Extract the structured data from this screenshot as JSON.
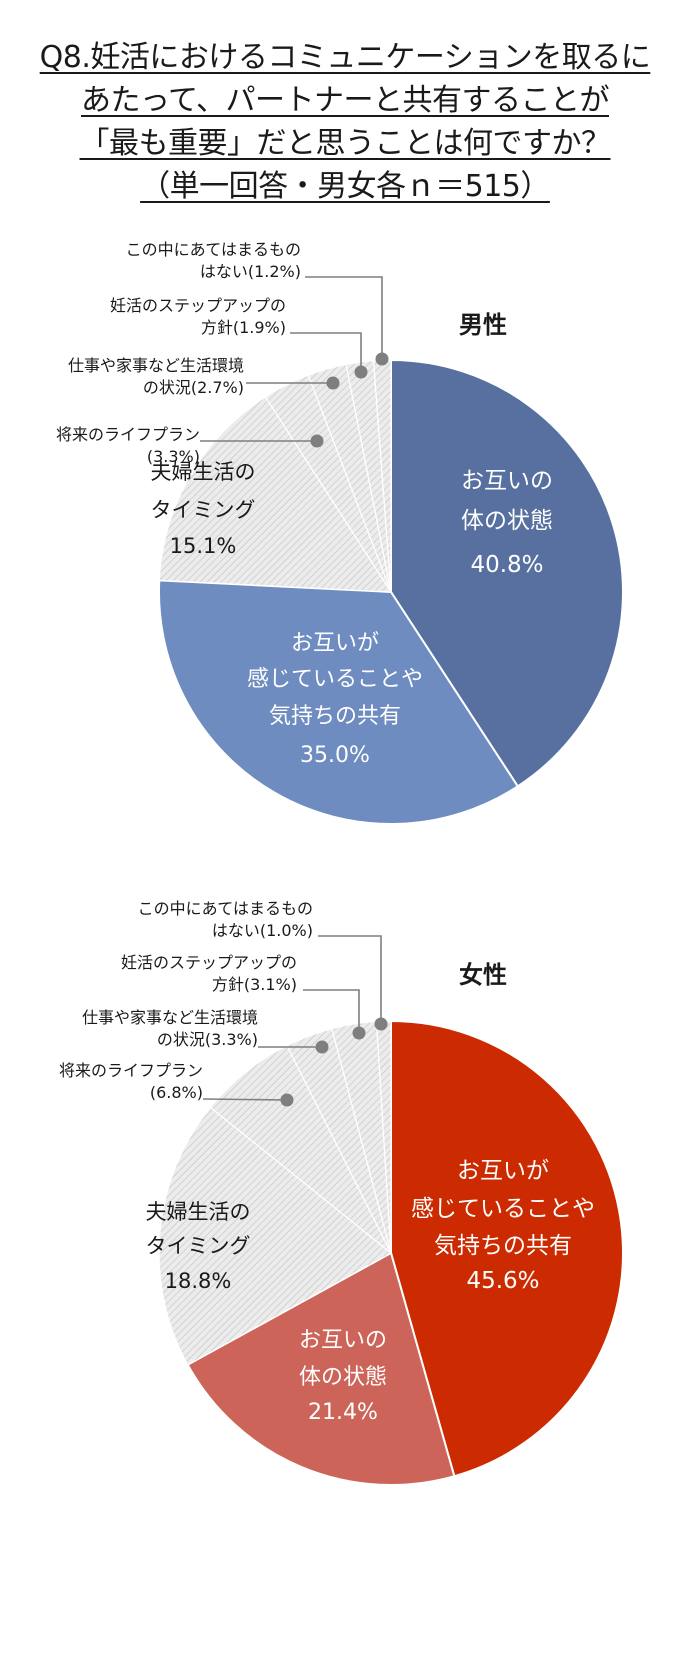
{
  "title_lines": [
    "Q8.妊活におけるコミュニケーションを取るに",
    "あたって、パートナーと共有することが",
    "「最も重要」だと思うことは何ですか？",
    "（単一回答・男女各ｎ＝515）"
  ],
  "chart_data": [
    {
      "type": "pie",
      "title": "男性",
      "slices": [
        {
          "label": [
            "お互いの",
            "体の状態"
          ],
          "value": 40.8,
          "value_text": "40.8%",
          "color": "#57709f",
          "text_color": "#ffffff"
        },
        {
          "label": [
            "お互いが",
            "感じていることや",
            "気持ちの共有"
          ],
          "value": 35.0,
          "value_text": "35.0%",
          "color": "#6e8cc0",
          "text_color": "#ffffff"
        },
        {
          "label": [
            "夫婦生活の",
            "タイミング"
          ],
          "value": 15.1,
          "value_text": "15.1%",
          "color": "#e6e6e6",
          "text_color": "#1a1a1a"
        },
        {
          "label": [
            "将来のライフプラン",
            "(3.3%)"
          ],
          "value": 3.3,
          "color": "#e6e6e6"
        },
        {
          "label": [
            "仕事や家事など生活環境",
            "の状況(2.7%)"
          ],
          "value": 2.7,
          "color": "#e6e6e6"
        },
        {
          "label": [
            "妊活のステップアップの",
            "方針(1.9%)"
          ],
          "value": 1.9,
          "color": "#e6e6e6"
        },
        {
          "label": [
            "この中にあてはまるもの",
            "はない(1.2%)"
          ],
          "value": 1.2,
          "color": "#e6e6e6"
        }
      ]
    },
    {
      "type": "pie",
      "title": "女性",
      "slices": [
        {
          "label": [
            "お互いが",
            "感じていることや",
            "気持ちの共有"
          ],
          "value": 45.6,
          "value_text": "45.6%",
          "color": "#cc2a00",
          "text_color": "#ffffff"
        },
        {
          "label": [
            "お互いの",
            "体の状態"
          ],
          "value": 21.4,
          "value_text": "21.4%",
          "color": "#cc6459",
          "text_color": "#ffffff"
        },
        {
          "label": [
            "夫婦生活の",
            "タイミング"
          ],
          "value": 18.8,
          "value_text": "18.8%",
          "color": "#e6e6e6",
          "text_color": "#1a1a1a"
        },
        {
          "label": [
            "将来のライフプラン",
            "(6.8%)"
          ],
          "value": 6.8,
          "color": "#e6e6e6"
        },
        {
          "label": [
            "仕事や家事など生活環境",
            "の状況(3.3%)"
          ],
          "value": 3.3,
          "color": "#e6e6e6"
        },
        {
          "label": [
            "妊活のステップアップの",
            "方針(3.1%)"
          ],
          "value": 3.1,
          "color": "#e6e6e6"
        },
        {
          "label": [
            "この中にあてはまるもの",
            "はない(1.0%)"
          ],
          "value": 1.0,
          "color": "#e6e6e6"
        }
      ]
    }
  ]
}
